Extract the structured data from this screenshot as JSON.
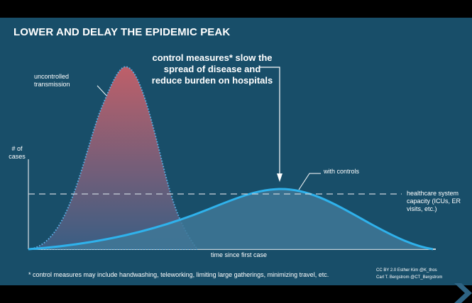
{
  "title": "LOWER AND DELAY THE EPIDEMIC PEAK",
  "annotation": "control measures* slow the spread of disease and reduce burden on hospitals",
  "labels": {
    "uncontrolled": "uncontrolled transmission",
    "y_axis": "# of cases",
    "with_controls": "with controls",
    "capacity": "healthcare system capacity (ICUs, ER visits, etc.)",
    "x_axis": "time since first case"
  },
  "footnote": "* control measures may include handwashing, teleworking, limiting large gatherings, minimizing travel, etc.",
  "credits": {
    "line1": "CC BY 2.0  Esther Kim  @K_thos",
    "line2": "Carl T. Bergstrom  @CT_Bergstrom"
  },
  "colors": {
    "background": "#184E69",
    "uncontrolled_top": "#C8606A",
    "uncontrolled_bottom": "#3C5F86",
    "controlled_line": "#2FB2EC",
    "capacity_line": "#C9D3DA"
  },
  "icons": {
    "arrow": "down-arrow-icon",
    "corner": "chevron-icon"
  }
}
